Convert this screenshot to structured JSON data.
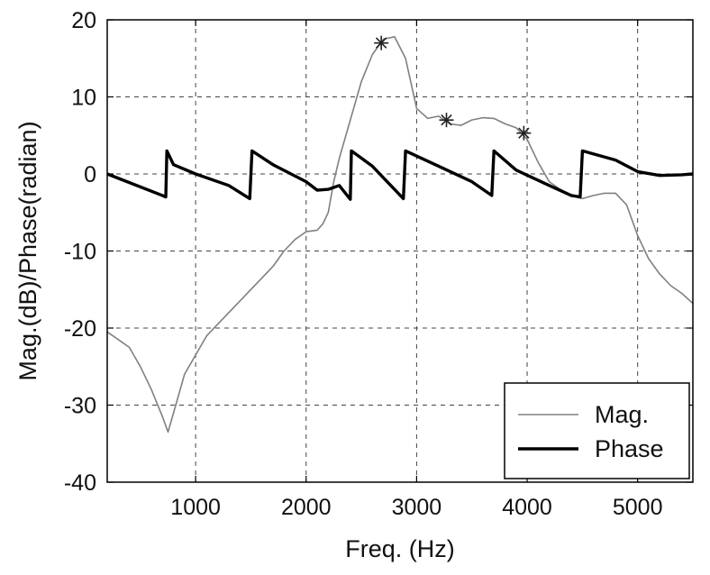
{
  "chart_data": {
    "type": "line",
    "xlabel": "Freq. (Hz)",
    "ylabel": "Mag.(dB)/Phase(radian)",
    "xlim": [
      200,
      5500
    ],
    "ylim": [
      -40,
      20
    ],
    "xticks": [
      1000,
      2000,
      3000,
      4000,
      5000
    ],
    "yticks": [
      -40,
      -30,
      -20,
      -10,
      0,
      10,
      20
    ],
    "grid": true,
    "legend": "bottom-right",
    "series": [
      {
        "name": "Mag.",
        "color": "#808080",
        "points": [
          [
            200,
            -20.5
          ],
          [
            300,
            -21.5
          ],
          [
            400,
            -22.5
          ],
          [
            500,
            -25
          ],
          [
            600,
            -28
          ],
          [
            700,
            -31.5
          ],
          [
            750,
            -33.5
          ],
          [
            800,
            -31
          ],
          [
            900,
            -26
          ],
          [
            1000,
            -23.5
          ],
          [
            1100,
            -21
          ],
          [
            1200,
            -19.5
          ],
          [
            1300,
            -18
          ],
          [
            1400,
            -16.5
          ],
          [
            1500,
            -15
          ],
          [
            1600,
            -13.5
          ],
          [
            1700,
            -12
          ],
          [
            1800,
            -10
          ],
          [
            1900,
            -8.5
          ],
          [
            2000,
            -7.5
          ],
          [
            2100,
            -7.3
          ],
          [
            2150,
            -6.5
          ],
          [
            2200,
            -5
          ],
          [
            2250,
            -1
          ],
          [
            2300,
            2
          ],
          [
            2400,
            7
          ],
          [
            2500,
            12
          ],
          [
            2600,
            15.5
          ],
          [
            2700,
            17.5
          ],
          [
            2800,
            17.8
          ],
          [
            2900,
            15
          ],
          [
            3000,
            8.5
          ],
          [
            3100,
            7.2
          ],
          [
            3200,
            7.5
          ],
          [
            3300,
            6.5
          ],
          [
            3400,
            6.3
          ],
          [
            3500,
            7
          ],
          [
            3600,
            7.3
          ],
          [
            3700,
            7.2
          ],
          [
            3800,
            6.5
          ],
          [
            3900,
            6
          ],
          [
            4000,
            4.5
          ],
          [
            4100,
            1.5
          ],
          [
            4200,
            -1
          ],
          [
            4300,
            -2
          ],
          [
            4400,
            -2.8
          ],
          [
            4500,
            -3.2
          ],
          [
            4600,
            -2.8
          ],
          [
            4700,
            -2.5
          ],
          [
            4800,
            -2.5
          ],
          [
            4900,
            -4
          ],
          [
            5000,
            -8
          ],
          [
            5100,
            -11
          ],
          [
            5200,
            -13
          ],
          [
            5300,
            -14.5
          ],
          [
            5400,
            -15.5
          ],
          [
            5500,
            -16.8
          ]
        ]
      },
      {
        "name": "Phase",
        "color": "#000000",
        "points": [
          [
            200,
            0
          ],
          [
            700,
            -2.8
          ],
          [
            730,
            -3
          ],
          [
            740,
            3
          ],
          [
            800,
            1.2
          ],
          [
            1000,
            0
          ],
          [
            1300,
            -1.5
          ],
          [
            1490,
            -3.2
          ],
          [
            1510,
            3
          ],
          [
            1700,
            1.2
          ],
          [
            2000,
            -1
          ],
          [
            2100,
            -2.1
          ],
          [
            2200,
            -2
          ],
          [
            2300,
            -1.5
          ],
          [
            2400,
            -3.3
          ],
          [
            2410,
            3
          ],
          [
            2600,
            1
          ],
          [
            2880,
            -3.2
          ],
          [
            2900,
            3
          ],
          [
            3200,
            1
          ],
          [
            3500,
            -1
          ],
          [
            3680,
            -2.8
          ],
          [
            3700,
            3
          ],
          [
            3900,
            0.5
          ],
          [
            4200,
            -1.5
          ],
          [
            4400,
            -2.8
          ],
          [
            4480,
            -3
          ],
          [
            4500,
            3
          ],
          [
            4800,
            1.8
          ],
          [
            5000,
            0.3
          ],
          [
            5200,
            -0.2
          ],
          [
            5400,
            -0.1
          ],
          [
            5500,
            0
          ]
        ]
      }
    ],
    "markers": [
      {
        "x": 2680,
        "y": 17,
        "symbol": "asterisk"
      },
      {
        "x": 3270,
        "y": 7,
        "symbol": "asterisk"
      },
      {
        "x": 3970,
        "y": 5.3,
        "symbol": "asterisk"
      }
    ]
  }
}
